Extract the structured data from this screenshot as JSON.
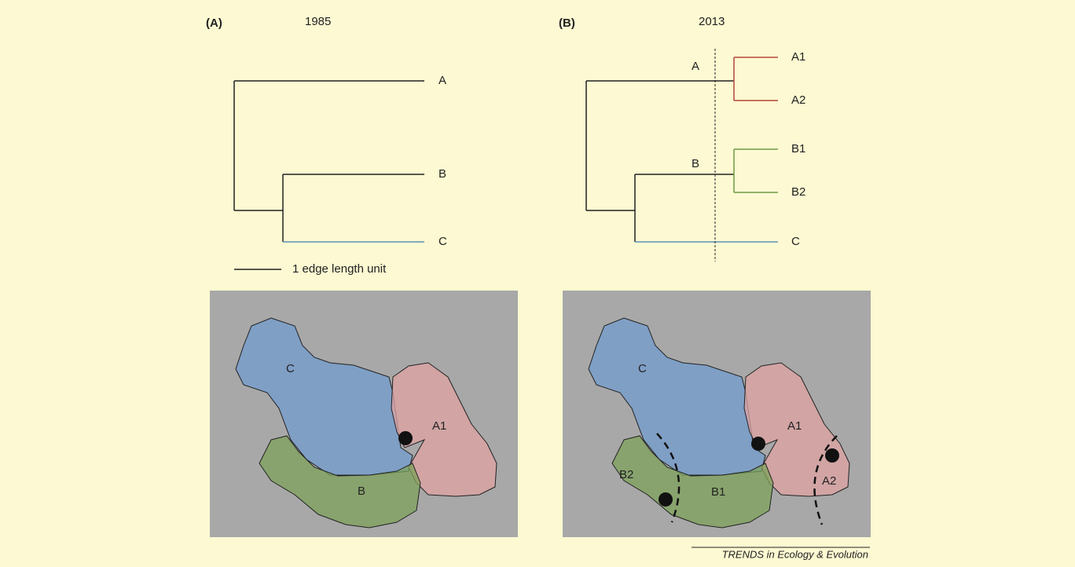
{
  "panels": [
    {
      "label": "(A)",
      "year": "1985",
      "tree": {
        "tips": [
          "A",
          "B",
          "C"
        ]
      },
      "scale_label": "1 edge length unit",
      "map": {
        "labels": [
          "C",
          "A1",
          "B"
        ]
      }
    },
    {
      "label": "(B)",
      "year": "2013",
      "tree": {
        "branch_labels": [
          "A",
          "B"
        ],
        "tips": [
          "A1",
          "A2",
          "B1",
          "B2",
          "C"
        ]
      },
      "map": {
        "labels": [
          "C",
          "A1",
          "B2",
          "B1",
          "A2"
        ]
      }
    }
  ],
  "footer": "TRENDS in Ecology & Evolution"
}
